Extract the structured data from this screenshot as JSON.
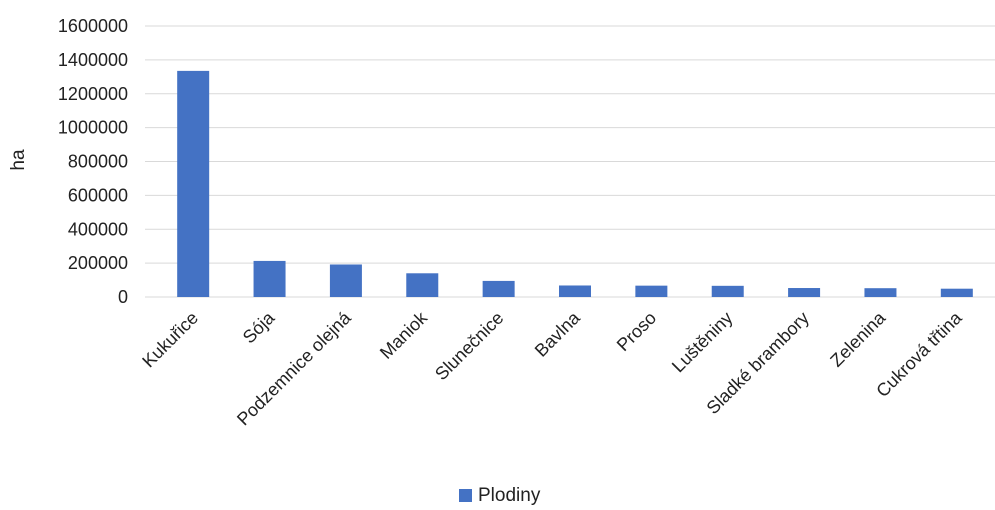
{
  "chart_data": {
    "type": "bar",
    "categories": [
      "Kukuřice",
      "Sója",
      "Podzemnice olejná",
      "Maniok",
      "Slunečnice",
      "Bavlna",
      "Proso",
      "Luštěniny",
      "Sladké brambory",
      "Zelenina",
      "Cukrová třtina"
    ],
    "series": [
      {
        "name": "Plodiny",
        "values": [
          1335000,
          213000,
          192000,
          140000,
          95000,
          68000,
          67000,
          66000,
          53000,
          52000,
          49000
        ],
        "color": "#4472C4"
      }
    ],
    "ylabel": "ha",
    "ylim": [
      0,
      1600000
    ],
    "yticks": [
      "0",
      "200000",
      "400000",
      "600000",
      "800000",
      "1000000",
      "1200000",
      "1400000",
      "1600000"
    ],
    "grid": true,
    "legend": "bottom"
  }
}
